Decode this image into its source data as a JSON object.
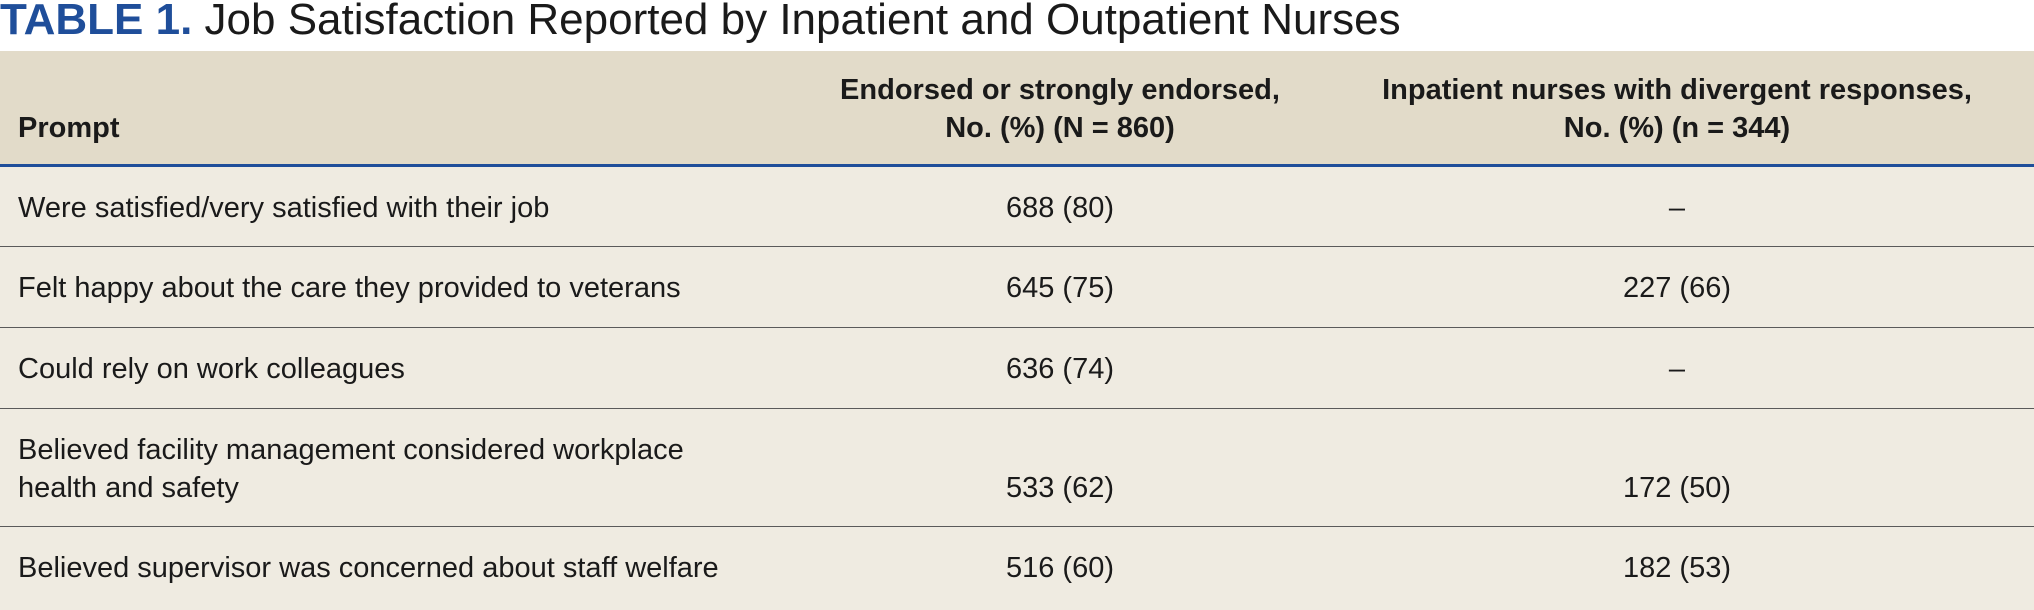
{
  "title": {
    "label": "TABLE 1.",
    "text": "Job Satisfaction Reported by Inpatient and Outpatient Nurses"
  },
  "table": {
    "headers": {
      "prompt": "Prompt",
      "col2_line1": "Endorsed or strongly endorsed,",
      "col2_line2": "No. (%) (N = 860)",
      "col3_line1": "Inpatient nurses with divergent responses,",
      "col3_line2": "No. (%) (n = 344)"
    },
    "rows": [
      {
        "prompt_line1": "Were satisfied/very satisfied with their job",
        "endorsed": "688 (80)",
        "inpatient": "–"
      },
      {
        "prompt_line1": "Felt happy about the care they provided to veterans",
        "endorsed": "645 (75)",
        "inpatient": "227 (66)"
      },
      {
        "prompt_line1": "Could rely on work colleagues",
        "endorsed": "636 (74)",
        "inpatient": "–"
      },
      {
        "prompt_line1": "Believed facility management considered workplace",
        "prompt_line2": "health and safety",
        "endorsed": "533 (62)",
        "inpatient": "172 (50)"
      },
      {
        "prompt_line1": "Believed supervisor was concerned about staff welfare",
        "endorsed": "516 (60)",
        "inpatient": "182 (53)"
      }
    ]
  }
}
